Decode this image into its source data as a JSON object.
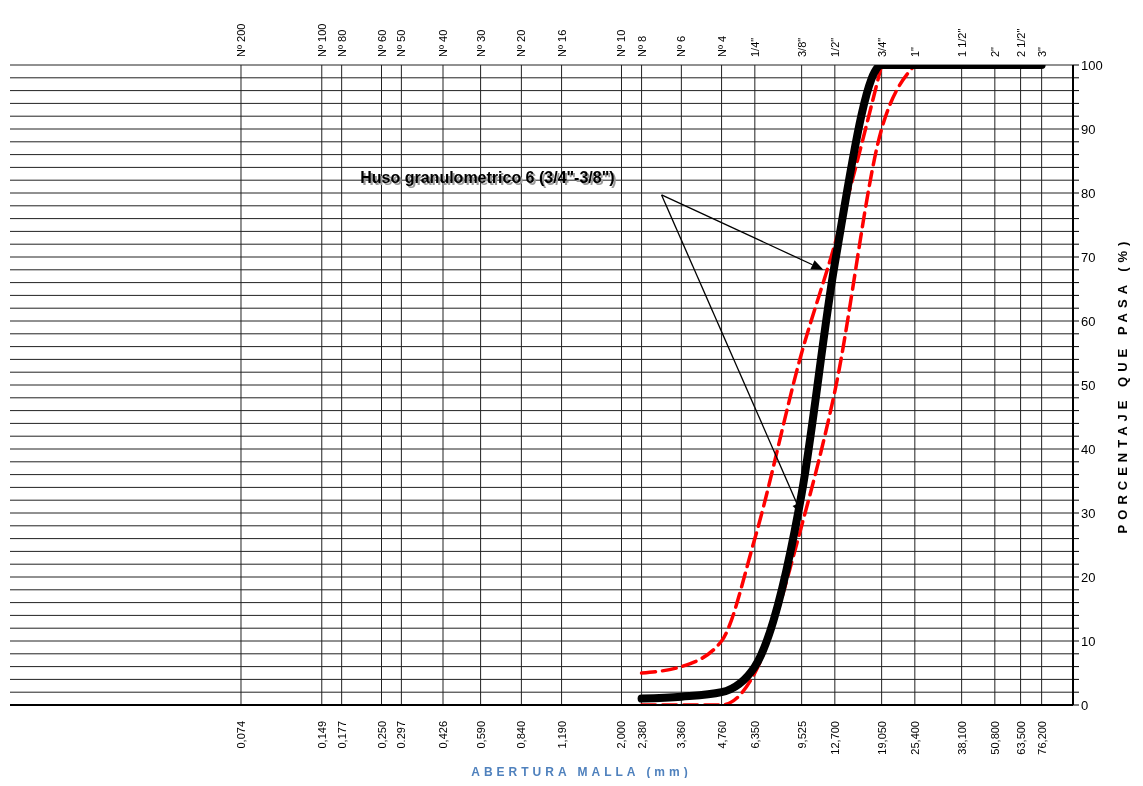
{
  "chart_data": {
    "type": "line",
    "xlabel": "ABERTURA MALLA (mm)",
    "ylabel": "PORCENTAJE QUE PASA (%)",
    "log": "x",
    "grid": true,
    "legend": false,
    "marker": "none",
    "annotations": [
      "Huso granulometrico 6 (3/4\"-3/8\")",
      "Nº 200",
      "Nº 100",
      "Nº 80",
      "Nº 60",
      "Nº 50",
      "Nº 40",
      "Nº 30",
      "Nº 20",
      "Nº 16",
      "Nº 10",
      "Nº 8",
      "Nº 6",
      "Nº 4",
      "1/4\"",
      "3/8\"",
      "1/2\"",
      "3/4\"",
      "1\"",
      "1 1/2\"",
      "2\"",
      "2 1/2\"",
      "3\""
    ],
    "xlim": [
      0.01,
      100
    ],
    "ylim": [
      0,
      100
    ],
    "xticks": [
      {
        "value": 0.074,
        "label": "0,074"
      },
      {
        "value": 0.149,
        "label": "0,149"
      },
      {
        "value": 0.177,
        "label": "0,177"
      },
      {
        "value": 0.25,
        "label": "0,250"
      },
      {
        "value": 0.297,
        "label": "0.297"
      },
      {
        "value": 0.426,
        "label": "0,426"
      },
      {
        "value": 0.59,
        "label": "0,590"
      },
      {
        "value": 0.84,
        "label": "0,840"
      },
      {
        "value": 1.19,
        "label": "1,190"
      },
      {
        "value": 2,
        "label": "2,000"
      },
      {
        "value": 2.38,
        "label": "2,380"
      },
      {
        "value": 3.36,
        "label": "3,360"
      },
      {
        "value": 4.76,
        "label": "4,760"
      },
      {
        "value": 6.35,
        "label": "6,350"
      },
      {
        "value": 9.525,
        "label": "9,525"
      },
      {
        "value": 12.7,
        "label": "12,700"
      },
      {
        "value": 19.05,
        "label": "19,050"
      },
      {
        "value": 25.4,
        "label": "25,400"
      },
      {
        "value": 38.1,
        "label": "38,100"
      },
      {
        "value": 50.8,
        "label": "50,800"
      },
      {
        "value": 63.5,
        "label": "63,500"
      },
      {
        "value": 76.2,
        "label": "76,200"
      }
    ],
    "yticks": [
      0,
      {
        "value": 2,
        "label": null
      },
      {
        "value": 4,
        "label": null
      },
      {
        "value": 6,
        "label": null
      },
      {
        "value": 8,
        "label": null
      },
      10,
      {
        "value": 12,
        "label": null
      },
      {
        "value": 14,
        "label": null
      },
      {
        "value": 16,
        "label": null
      },
      {
        "value": 18,
        "label": null
      },
      20,
      {
        "value": 22,
        "label": null
      },
      {
        "value": 24,
        "label": null
      },
      {
        "value": 26,
        "label": null
      },
      {
        "value": 28,
        "label": null
      },
      30,
      {
        "value": 32,
        "label": null
      },
      {
        "value": 34,
        "label": null
      },
      {
        "value": 36,
        "label": null
      },
      {
        "value": 38,
        "label": null
      },
      40,
      {
        "value": 42,
        "label": null
      },
      {
        "value": 44,
        "label": null
      },
      {
        "value": 46,
        "label": null
      },
      {
        "value": 48,
        "label": null
      },
      50,
      {
        "value": 52,
        "label": null
      },
      {
        "value": 54,
        "label": null
      },
      {
        "value": 56,
        "label": null
      },
      {
        "value": 58,
        "label": null
      },
      60,
      {
        "value": 62,
        "label": null
      },
      {
        "value": 64,
        "label": null
      },
      {
        "value": 66,
        "label": null
      },
      {
        "value": 68,
        "label": null
      },
      70,
      {
        "value": 72,
        "label": null
      },
      {
        "value": 74,
        "label": null
      },
      {
        "value": 76,
        "label": null
      },
      {
        "value": 78,
        "label": null
      },
      80,
      {
        "value": 82,
        "label": null
      },
      {
        "value": 84,
        "label": null
      },
      {
        "value": 86,
        "label": null
      },
      {
        "value": 88,
        "label": null
      },
      90,
      {
        "value": 92,
        "label": null
      },
      {
        "value": 94,
        "label": null
      },
      {
        "value": 96,
        "label": null
      },
      {
        "value": 98,
        "label": null
      },
      100
    ],
    "series": [
      {
        "color": "#ff0000",
        "line_style": "dashed",
        "x": [
          2.38,
          3.36,
          4.76,
          6.35,
          9.525,
          12.7,
          19.05
        ],
        "values": [
          5,
          6,
          10,
          26,
          55,
          72,
          100
        ]
      },
      {
        "color": "#ff0000",
        "line_style": "dashed",
        "x": [
          2.38,
          4.76,
          6.35,
          9.525,
          12.7,
          19.05,
          25.4
        ],
        "values": [
          0,
          0,
          5,
          28,
          49,
          90,
          100
        ]
      },
      {
        "color": "#000000",
        "line_style": "solid",
        "x": [
          2.38,
          3.36,
          4.76,
          6.35,
          9.525,
          12.7,
          19.05,
          25.4,
          38.1,
          50.8,
          63.5,
          76.2
        ],
        "values": [
          1,
          1.3,
          2,
          6,
          33,
          69,
          100,
          100,
          100,
          100,
          100,
          100
        ]
      }
    ]
  }
}
